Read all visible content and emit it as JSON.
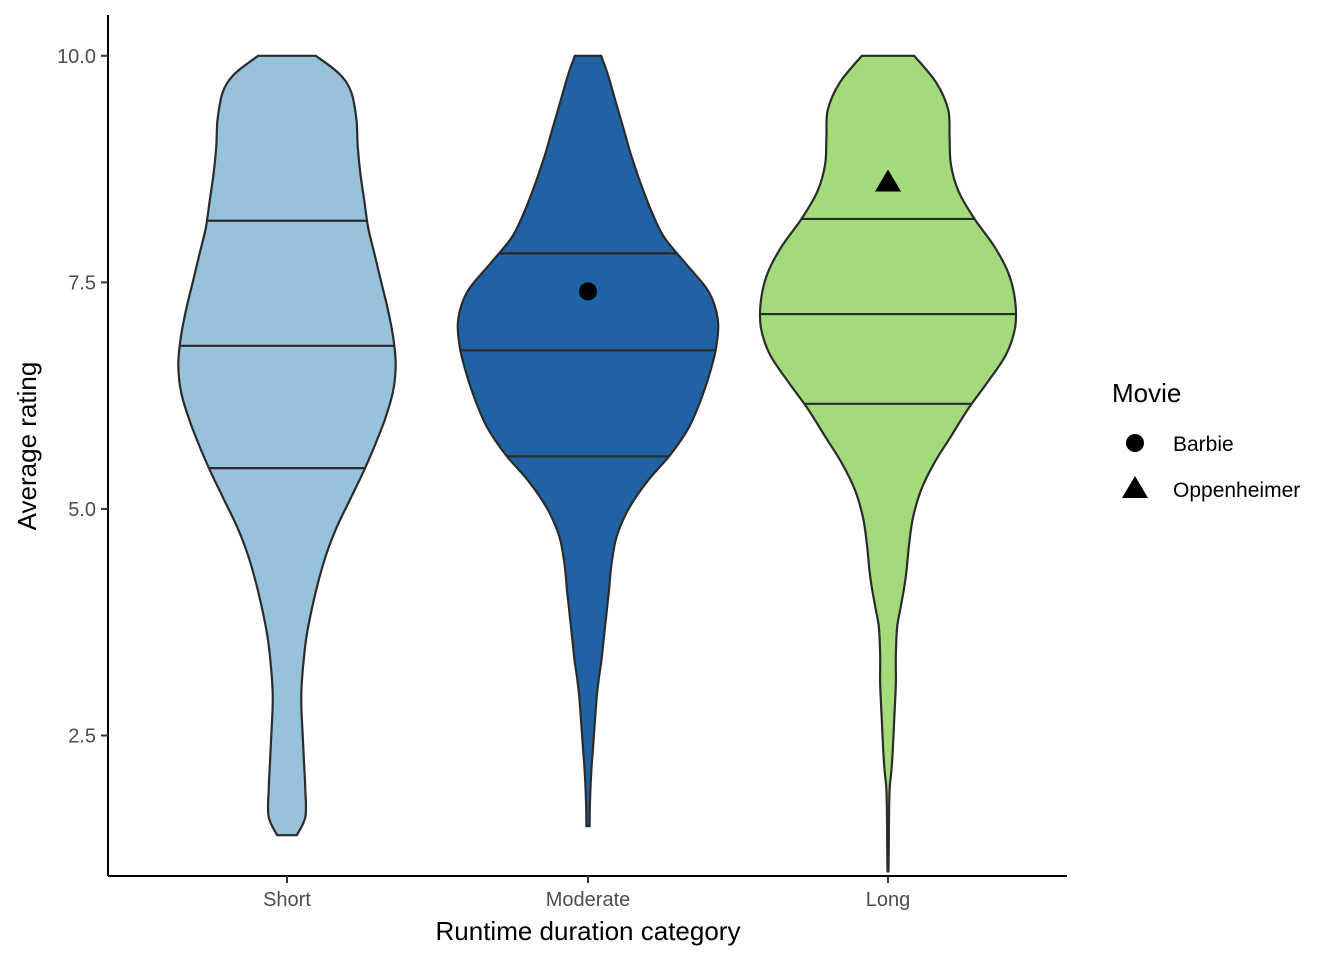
{
  "chart_data": {
    "type": "violin",
    "xlabel": "Runtime duration category",
    "ylabel": "Average rating",
    "ylim": [
      0.95,
      10.45
    ],
    "yticks": [
      2.5,
      5.0,
      7.5,
      10.0
    ],
    "ytick_labels": [
      "2.5",
      "5.0",
      "7.5",
      "10.0"
    ],
    "grid": false,
    "categories": [
      "Short",
      "Moderate",
      "Long"
    ],
    "colors": {
      "Short": "#96c2db",
      "Moderate": "#1f63a5",
      "Long": "#a3da7a",
      "outline": "#2b2b2b"
    },
    "series": [
      {
        "category": "Short",
        "range": [
          1.4,
          10.0
        ],
        "quantiles": {
          "q25": 5.45,
          "q50": 6.8,
          "q75": 8.18
        },
        "density": [
          [
            1.4,
            0.075
          ],
          [
            1.6,
            0.14
          ],
          [
            1.9,
            0.14
          ],
          [
            2.2,
            0.13
          ],
          [
            2.5,
            0.12
          ],
          [
            2.8,
            0.11
          ],
          [
            3.0,
            0.11
          ],
          [
            3.3,
            0.125
          ],
          [
            3.6,
            0.15
          ],
          [
            3.9,
            0.19
          ],
          [
            4.2,
            0.24
          ],
          [
            4.5,
            0.3
          ],
          [
            4.8,
            0.38
          ],
          [
            5.1,
            0.48
          ],
          [
            5.4,
            0.58
          ],
          [
            5.7,
            0.67
          ],
          [
            6.0,
            0.75
          ],
          [
            6.3,
            0.81
          ],
          [
            6.6,
            0.83
          ],
          [
            6.9,
            0.81
          ],
          [
            7.2,
            0.77
          ],
          [
            7.5,
            0.72
          ],
          [
            7.8,
            0.67
          ],
          [
            8.1,
            0.62
          ],
          [
            8.4,
            0.59
          ],
          [
            8.7,
            0.56
          ],
          [
            9.0,
            0.54
          ],
          [
            9.3,
            0.53
          ],
          [
            9.6,
            0.49
          ],
          [
            9.8,
            0.4
          ],
          [
            10.0,
            0.22
          ]
        ]
      },
      {
        "category": "Moderate",
        "range": [
          1.5,
          10.0
        ],
        "quantiles": {
          "q25": 5.58,
          "q50": 6.75,
          "q75": 7.82
        },
        "density": [
          [
            1.5,
            0.012
          ],
          [
            1.7,
            0.014
          ],
          [
            1.9,
            0.018
          ],
          [
            2.1,
            0.025
          ],
          [
            2.3,
            0.035
          ],
          [
            2.5,
            0.045
          ],
          [
            2.7,
            0.055
          ],
          [
            2.9,
            0.065
          ],
          [
            3.1,
            0.08
          ],
          [
            3.3,
            0.1
          ],
          [
            3.5,
            0.115
          ],
          [
            3.7,
            0.13
          ],
          [
            3.9,
            0.145
          ],
          [
            4.1,
            0.16
          ],
          [
            4.4,
            0.18
          ],
          [
            4.7,
            0.22
          ],
          [
            5.0,
            0.31
          ],
          [
            5.3,
            0.45
          ],
          [
            5.6,
            0.63
          ],
          [
            5.9,
            0.77
          ],
          [
            6.2,
            0.86
          ],
          [
            6.5,
            0.93
          ],
          [
            6.8,
            0.98
          ],
          [
            7.1,
            0.99
          ],
          [
            7.4,
            0.92
          ],
          [
            7.7,
            0.75
          ],
          [
            8.0,
            0.58
          ],
          [
            8.3,
            0.48
          ],
          [
            8.6,
            0.4
          ],
          [
            8.9,
            0.33
          ],
          [
            9.2,
            0.27
          ],
          [
            9.5,
            0.21
          ],
          [
            9.8,
            0.15
          ],
          [
            10.0,
            0.1
          ]
        ]
      },
      {
        "category": "Long",
        "range": [
          1.0,
          10.0
        ],
        "quantiles": {
          "q25": 6.16,
          "q50": 7.15,
          "q75": 8.2
        },
        "density": [
          [
            1.0,
            0.004
          ],
          [
            1.3,
            0.006
          ],
          [
            1.6,
            0.008
          ],
          [
            1.9,
            0.012
          ],
          [
            2.1,
            0.025
          ],
          [
            2.3,
            0.035
          ],
          [
            2.6,
            0.045
          ],
          [
            2.9,
            0.055
          ],
          [
            3.1,
            0.06
          ],
          [
            3.4,
            0.06
          ],
          [
            3.7,
            0.07
          ],
          [
            3.9,
            0.095
          ],
          [
            4.1,
            0.12
          ],
          [
            4.3,
            0.14
          ],
          [
            4.6,
            0.16
          ],
          [
            4.9,
            0.19
          ],
          [
            5.2,
            0.25
          ],
          [
            5.5,
            0.35
          ],
          [
            5.8,
            0.48
          ],
          [
            6.1,
            0.61
          ],
          [
            6.4,
            0.76
          ],
          [
            6.7,
            0.9
          ],
          [
            7.0,
            0.97
          ],
          [
            7.3,
            0.97
          ],
          [
            7.6,
            0.92
          ],
          [
            7.9,
            0.81
          ],
          [
            8.2,
            0.66
          ],
          [
            8.5,
            0.54
          ],
          [
            8.8,
            0.48
          ],
          [
            9.1,
            0.47
          ],
          [
            9.4,
            0.46
          ],
          [
            9.7,
            0.37
          ],
          [
            10.0,
            0.2
          ]
        ]
      }
    ],
    "points": [
      {
        "movie": "Barbie",
        "category": "Moderate",
        "y": 7.4,
        "shape": "circle"
      },
      {
        "movie": "Oppenheimer",
        "category": "Long",
        "y": 8.6,
        "shape": "triangle"
      }
    ],
    "legend": {
      "title": "Movie",
      "position": "right",
      "items": [
        {
          "label": "Barbie",
          "shape": "circle"
        },
        {
          "label": "Oppenheimer",
          "shape": "triangle"
        }
      ]
    }
  }
}
